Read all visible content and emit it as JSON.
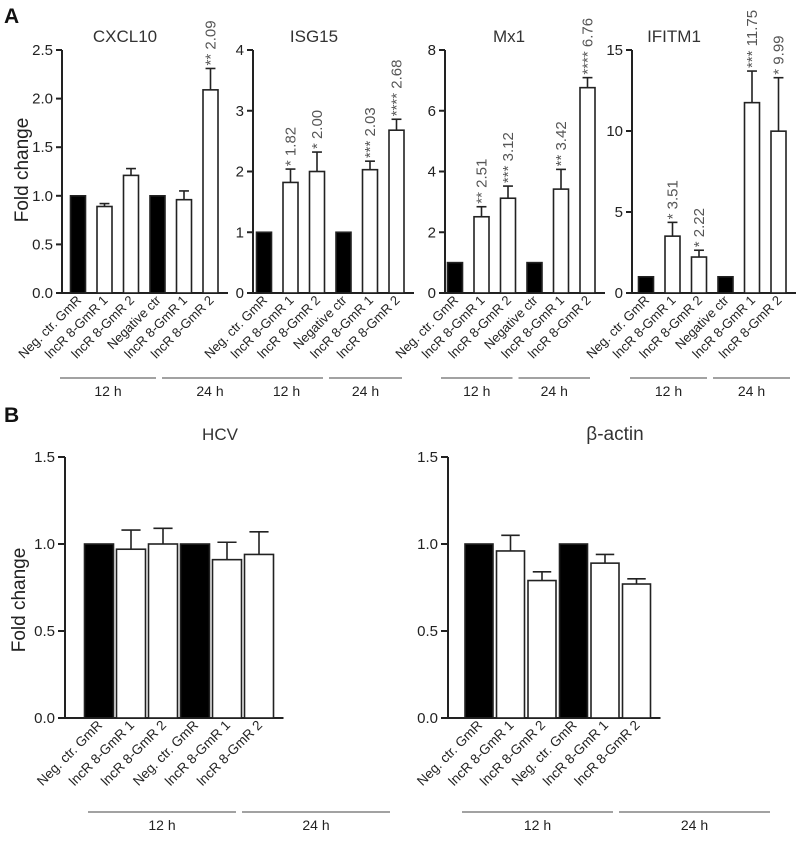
{
  "panel_labels": {
    "a": "A",
    "b": "B"
  },
  "ylabel": "Fold change",
  "group_labels": {
    "h12": "12 h",
    "h24": "24 h"
  },
  "colors": {
    "control": "#000000",
    "treated": "#ffffff",
    "axis": "#222222",
    "annotation": "#555555"
  },
  "chart_data": [
    {
      "type": "bar",
      "title": "CXCL10",
      "panel": "A",
      "ylabel": "Fold change",
      "ylim": [
        0,
        2.5
      ],
      "yticks": [
        "0.0",
        "0.5",
        "1.0",
        "1.5",
        "2.0",
        "2.5"
      ],
      "categories": [
        "Neg. ctr. GmR",
        "lncR 8-GmR 1",
        "lncR 8-GmR 2",
        "Negative ctr",
        "lncR 8-GmR 1",
        "lncR 8-GmR 2"
      ],
      "values": [
        1.0,
        0.89,
        1.21,
        1.0,
        0.96,
        2.09
      ],
      "errors": [
        0,
        0.03,
        0.07,
        0,
        0.09,
        0.22
      ],
      "filled": [
        true,
        false,
        false,
        true,
        false,
        false
      ],
      "annotations": [
        "",
        "",
        "",
        "",
        "",
        "** 2.09"
      ],
      "groups": [
        {
          "label": "12 h",
          "from": 0,
          "to": 2
        },
        {
          "label": "24 h",
          "from": 3,
          "to": 5
        }
      ]
    },
    {
      "type": "bar",
      "title": "ISG15",
      "panel": "A",
      "ylim": [
        0,
        4
      ],
      "yticks": [
        "0",
        "1",
        "2",
        "3",
        "4"
      ],
      "categories": [
        "Neg. ctr. GmR",
        "lncR 8-GmR 1",
        "lncR 8-GmR 2",
        "Negative ctr",
        "lncR 8-GmR 1",
        "lncR 8-GmR 2"
      ],
      "values": [
        1.0,
        1.82,
        2.0,
        1.0,
        2.03,
        2.68
      ],
      "errors": [
        0,
        0.22,
        0.32,
        0,
        0.14,
        0.18
      ],
      "filled": [
        true,
        false,
        false,
        true,
        false,
        false
      ],
      "annotations": [
        "",
        "* 1.82",
        "* 2.00",
        "",
        "*** 2.03",
        "**** 2.68"
      ],
      "groups": [
        {
          "label": "12 h",
          "from": 0,
          "to": 2
        },
        {
          "label": "24 h",
          "from": 3,
          "to": 5
        }
      ]
    },
    {
      "type": "bar",
      "title": "Mx1",
      "panel": "A",
      "ylim": [
        0,
        8
      ],
      "yticks": [
        "0",
        "2",
        "4",
        "6",
        "8"
      ],
      "categories": [
        "Neg. ctr. GmR",
        "lncR 8-GmR 1",
        "lncR 8-GmR 2",
        "Negative ctr",
        "lncR 8-GmR 1",
        "lncR 8-GmR 2"
      ],
      "values": [
        1.0,
        2.51,
        3.12,
        1.0,
        3.42,
        6.76
      ],
      "errors": [
        0,
        0.33,
        0.4,
        0,
        0.65,
        0.33
      ],
      "filled": [
        true,
        false,
        false,
        true,
        false,
        false
      ],
      "annotations": [
        "",
        "** 2.51",
        "*** 3.12",
        "",
        "** 3.42",
        "**** 6.76"
      ],
      "groups": [
        {
          "label": "12 h",
          "from": 0,
          "to": 2
        },
        {
          "label": "24 h",
          "from": 3,
          "to": 5
        }
      ]
    },
    {
      "type": "bar",
      "title": "IFITM1",
      "panel": "A",
      "ylim": [
        0,
        15
      ],
      "yticks": [
        "0",
        "5",
        "10",
        "15"
      ],
      "categories": [
        "Neg. ctr. GmR",
        "lncR 8-GmR 1",
        "lncR 8-GmR 2",
        "Negative ctr",
        "lncR 8-GmR 1",
        "lncR 8-GmR 2"
      ],
      "values": [
        1.0,
        3.51,
        2.22,
        1.0,
        11.75,
        9.99
      ],
      "errors": [
        0,
        0.85,
        0.42,
        0,
        1.95,
        3.3
      ],
      "filled": [
        true,
        false,
        false,
        true,
        false,
        false
      ],
      "annotations": [
        "",
        "* 3.51",
        "* 2.22",
        "",
        "*** 11.75",
        "* 9.99"
      ],
      "groups": [
        {
          "label": "12 h",
          "from": 0,
          "to": 2
        },
        {
          "label": "24 h",
          "from": 3,
          "to": 5
        }
      ]
    },
    {
      "type": "bar",
      "title": "HCV",
      "panel": "B",
      "ylabel": "Fold change",
      "ylim": [
        0,
        1.5
      ],
      "yticks": [
        "0.0",
        "0.5",
        "1.0",
        "1.5"
      ],
      "categories": [
        "Neg. ctr. GmR",
        "lncR 8-GmR 1",
        "lncR 8-GmR 2",
        "Neg. ctr. GmR",
        "lncR 8-GmR 1",
        "lncR 8-GmR 2"
      ],
      "values": [
        1.0,
        0.97,
        1.0,
        1.0,
        0.91,
        0.94
      ],
      "errors": [
        0,
        0.11,
        0.09,
        0,
        0.1,
        0.13
      ],
      "filled": [
        true,
        false,
        false,
        true,
        false,
        false
      ],
      "annotations": [
        "",
        "",
        "",
        "",
        "",
        ""
      ],
      "groups": [
        {
          "label": "12 h",
          "from": 0,
          "to": 2
        },
        {
          "label": "24 h",
          "from": 3,
          "to": 5
        }
      ]
    },
    {
      "type": "bar",
      "title": "β-actin",
      "panel": "B",
      "ylim": [
        0,
        1.5
      ],
      "yticks": [
        "0.0",
        "0.5",
        "1.0",
        "1.5"
      ],
      "categories": [
        "Neg. ctr. GmR",
        "lncR 8-GmR 1",
        "lncR 8-GmR 2",
        "Neg. ctr. GmR",
        "lncR 8-GmR 1",
        "lncR 8-GmR 2"
      ],
      "values": [
        1.0,
        0.96,
        0.79,
        1.0,
        0.89,
        0.77
      ],
      "errors": [
        0,
        0.09,
        0.05,
        0,
        0.05,
        0.03
      ],
      "filled": [
        true,
        false,
        false,
        true,
        false,
        false
      ],
      "annotations": [
        "",
        "",
        "",
        "",
        "",
        ""
      ],
      "groups": [
        {
          "label": "12 h",
          "from": 0,
          "to": 2
        },
        {
          "label": "24 h",
          "from": 3,
          "to": 5
        }
      ]
    }
  ]
}
